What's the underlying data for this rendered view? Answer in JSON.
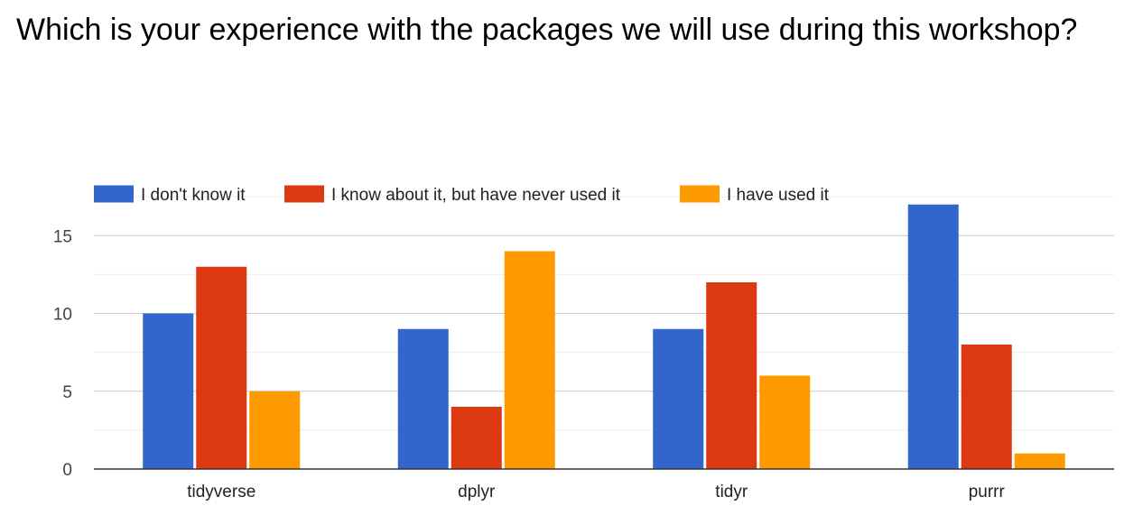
{
  "title": "Which is your experience with the packages we will use during this workshop?",
  "chart_data": {
    "type": "bar",
    "title": "Which is your experience with the packages we will use during this workshop?",
    "categories": [
      "tidyverse",
      "dplyr",
      "tidyr",
      "purrr"
    ],
    "series": [
      {
        "name": "I don't know it",
        "color": "#3366cc",
        "values": [
          10,
          9,
          9,
          17
        ]
      },
      {
        "name": "I know about it, but have never used it",
        "color": "#dc3912",
        "values": [
          13,
          4,
          12,
          8
        ]
      },
      {
        "name": "I have used it",
        "color": "#ff9900",
        "values": [
          5,
          14,
          6,
          1
        ]
      }
    ],
    "xlabel": "",
    "ylabel": "",
    "ylim": [
      0,
      18
    ],
    "yticks": [
      0,
      5,
      10,
      15
    ],
    "grid": true,
    "legend_position": "top"
  }
}
